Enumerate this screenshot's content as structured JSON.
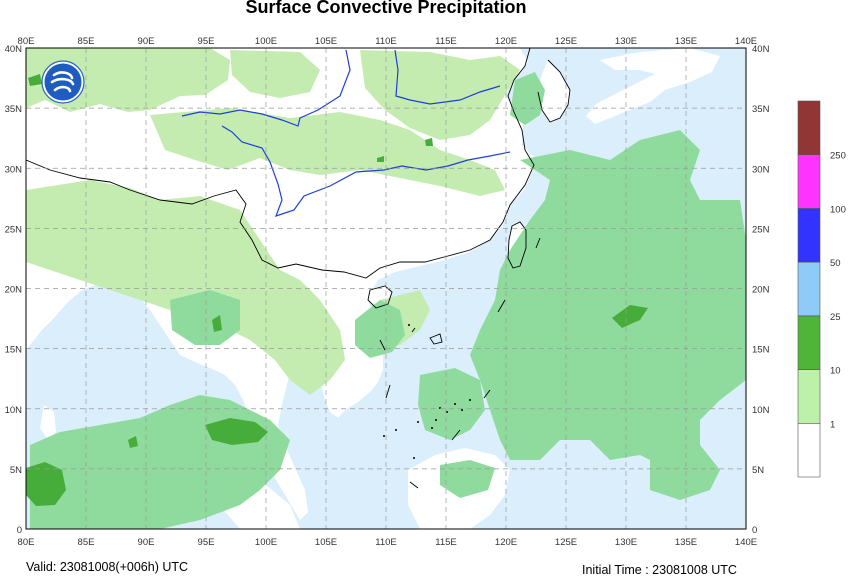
{
  "title": "Surface Convective Precipitation",
  "valid_label": "Valid: 23081008(+006h) UTC",
  "initial_label": "Initial Time : 23081008 UTC",
  "lon_labels": [
    "80E",
    "85E",
    "90E",
    "95E",
    "100E",
    "105E",
    "110E",
    "115E",
    "120E",
    "125E",
    "130E",
    "135E",
    "140E"
  ],
  "lat_labels": [
    "0",
    "5N",
    "10N",
    "15N",
    "20N",
    "25N",
    "30N",
    "35N",
    "40N"
  ],
  "legend": {
    "levels": [
      "1",
      "10",
      "25",
      "50",
      "100",
      "250"
    ],
    "colors": [
      "#ffffff",
      "#bdf0a8",
      "#4fb538",
      "#8ecbf9",
      "#3333ff",
      "#ff33ff",
      "#913535"
    ]
  },
  "map_colors": {
    "ocean": "#dbeefc",
    "land": "#ffffff",
    "precip_light": "#c4ecb0",
    "precip_mid": "#8fdb9e",
    "precip_heavy": "#47ad3a",
    "river": "#1f3fd6",
    "coast": "#000000"
  },
  "logo": {
    "icon": "cma-logo-icon"
  }
}
